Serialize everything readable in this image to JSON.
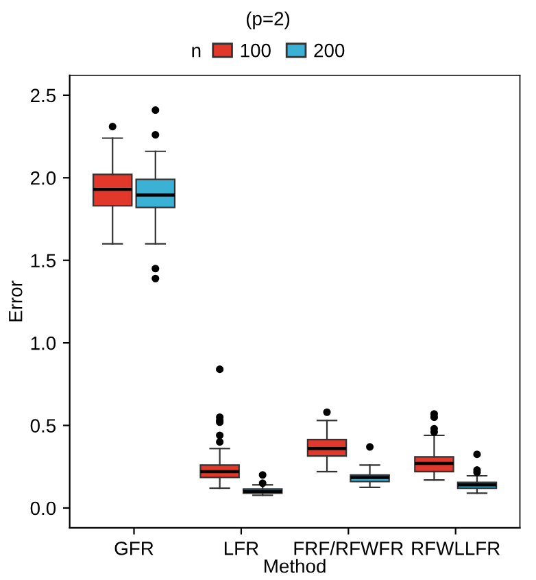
{
  "chart_data": {
    "type": "box",
    "title": "(p=2)",
    "xlabel": "Method",
    "ylabel": "Error",
    "legend_title": "n",
    "legend": "top",
    "categories": [
      "GFR",
      "LFR",
      "FRF/RFWFR",
      "RFWLLFR"
    ],
    "ylim": [
      -0.12,
      2.62
    ],
    "yticks": [
      {
        "value": 0,
        "label": "0.0"
      },
      0.5,
      {
        "value": 1,
        "label": "1.0"
      },
      1.5,
      {
        "value": 2,
        "label": "2.0"
      },
      2.5
    ],
    "grid": false,
    "series": [
      {
        "name": "100",
        "color": "#e2372b",
        "boxes": [
          {
            "low": 1.6,
            "q1": 1.83,
            "median": 1.93,
            "q3": 2.02,
            "high": 2.24,
            "outliers": [
              2.31
            ]
          },
          {
            "low": 0.12,
            "q1": 0.185,
            "median": 0.22,
            "q3": 0.26,
            "high": 0.36,
            "outliers": [
              0.84,
              0.55,
              0.53,
              0.52,
              0.44,
              0.4
            ]
          },
          {
            "low": 0.22,
            "q1": 0.315,
            "median": 0.36,
            "q3": 0.415,
            "high": 0.53,
            "outliers": [
              0.58
            ]
          },
          {
            "low": 0.17,
            "q1": 0.22,
            "median": 0.27,
            "q3": 0.31,
            "high": 0.44,
            "outliers": [
              0.57,
              0.55,
              0.48,
              0.46
            ]
          }
        ]
      },
      {
        "name": "200",
        "color": "#3cb1d6",
        "boxes": [
          {
            "low": 1.6,
            "q1": 1.82,
            "median": 1.895,
            "q3": 1.99,
            "high": 2.16,
            "outliers": [
              2.41,
              2.26,
              1.45,
              1.39
            ]
          },
          {
            "low": 0.077,
            "q1": 0.09,
            "median": 0.1,
            "q3": 0.115,
            "high": 0.14,
            "outliers": [
              0.15,
              0.2
            ]
          },
          {
            "low": 0.125,
            "q1": 0.16,
            "median": 0.185,
            "q3": 0.2,
            "high": 0.26,
            "outliers": [
              0.37
            ]
          },
          {
            "low": 0.09,
            "q1": 0.12,
            "median": 0.14,
            "q3": 0.155,
            "high": 0.195,
            "outliers": [
              0.325,
              0.23,
              0.215
            ]
          }
        ]
      }
    ]
  }
}
